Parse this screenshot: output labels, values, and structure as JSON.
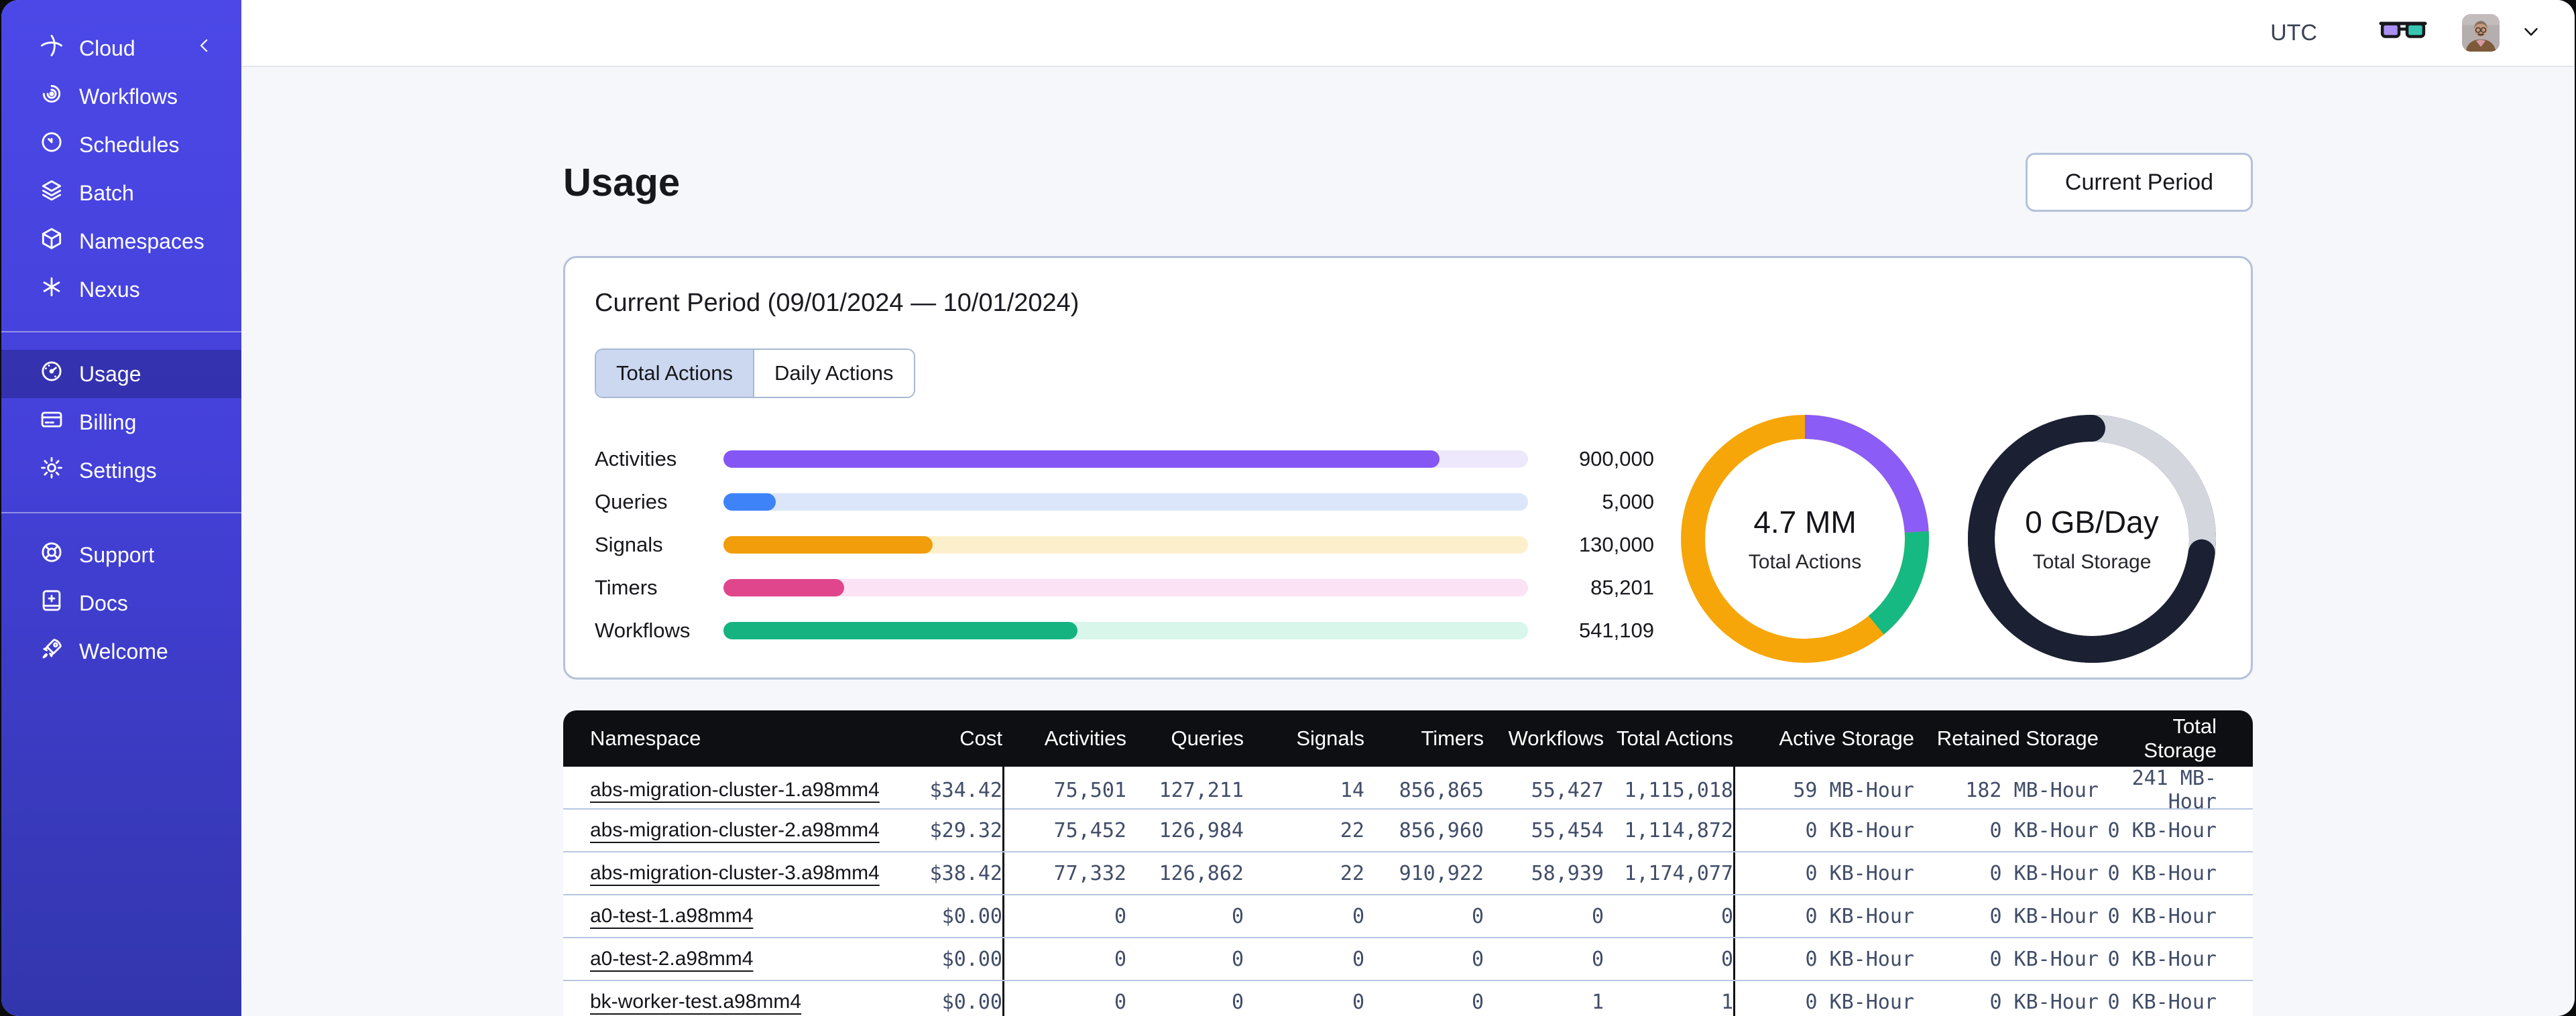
{
  "sidebar": {
    "brand": {
      "label": "Cloud",
      "icon": "cloud-orbit-icon",
      "collapse_icon": "chevron-left-icon"
    },
    "sections": [
      {
        "items": [
          {
            "id": "workflows",
            "label": "Workflows",
            "icon": "workflows-icon",
            "active": false
          },
          {
            "id": "schedules",
            "label": "Schedules",
            "icon": "schedules-icon",
            "active": false
          },
          {
            "id": "batch",
            "label": "Batch",
            "icon": "batch-icon",
            "active": false
          },
          {
            "id": "namespaces",
            "label": "Namespaces",
            "icon": "namespaces-icon",
            "active": false
          },
          {
            "id": "nexus",
            "label": "Nexus",
            "icon": "nexus-icon",
            "active": false
          }
        ]
      },
      {
        "items": [
          {
            "id": "usage",
            "label": "Usage",
            "icon": "usage-icon",
            "active": true
          },
          {
            "id": "billing",
            "label": "Billing",
            "icon": "billing-icon",
            "active": false
          },
          {
            "id": "settings",
            "label": "Settings",
            "icon": "settings-icon",
            "active": false
          }
        ]
      },
      {
        "items": [
          {
            "id": "support",
            "label": "Support",
            "icon": "support-icon",
            "active": false
          },
          {
            "id": "docs",
            "label": "Docs",
            "icon": "docs-icon",
            "active": false
          },
          {
            "id": "welcome",
            "label": "Welcome",
            "icon": "welcome-icon",
            "active": false
          }
        ]
      }
    ]
  },
  "header": {
    "timezone": "UTC"
  },
  "page": {
    "title": "Usage",
    "period_button": {
      "label": "Current Period"
    }
  },
  "card": {
    "title": "Current Period (09/01/2024 — 10/01/2024)",
    "tabs": [
      {
        "label": "Total Actions",
        "active": true
      },
      {
        "label": "Daily Actions",
        "active": false
      }
    ]
  },
  "chart_data": [
    {
      "type": "bar",
      "orientation": "horizontal",
      "title": "Total Actions by type — Current Period (09/01/2024 — 10/01/2024)",
      "categories": [
        "Activities",
        "Queries",
        "Signals",
        "Timers",
        "Workflows"
      ],
      "values": [
        900000,
        5000,
        130000,
        85201,
        541109
      ],
      "value_labels": [
        "900,000",
        "5,000",
        "130,000",
        "85,201",
        "541,109"
      ],
      "fill_pct": [
        89,
        6.5,
        26,
        15,
        44
      ],
      "colors": [
        "#8457f5",
        "#3f83f8",
        "#f19d0c",
        "#e0468c",
        "#14b380"
      ],
      "track_colors": [
        "#ede8fc",
        "#dbe6fa",
        "#fcf0cc",
        "#fbe2f4",
        "#d8f6ea"
      ],
      "grid": false,
      "legend": false
    },
    {
      "type": "pie",
      "variant": "donut",
      "linecap": "butt",
      "stroke": 36,
      "center_value": "4.7 MM",
      "center_label": "Total Actions",
      "segments": [
        {
          "name": "activities",
          "color": "#8b5cf6",
          "fraction": 0.24
        },
        {
          "name": "workflows",
          "color": "#16b981",
          "fraction": 0.15
        },
        {
          "name": "signals",
          "color": "#f6a609",
          "fraction": 0.61
        }
      ]
    },
    {
      "type": "pie",
      "variant": "donut",
      "linecap": "round",
      "stroke": 40,
      "center_value": "0 GB/Day",
      "center_label": "Total Storage",
      "segments": [
        {
          "name": "retained-storage",
          "color": "#d3d6dd",
          "fraction": 0.27
        },
        {
          "name": "active-storage",
          "color": "#1b2032",
          "fraction": 0.73
        }
      ]
    }
  ],
  "table": {
    "columns": [
      "Namespace",
      "Cost",
      "Activities",
      "Queries",
      "Signals",
      "Timers",
      "Workflows",
      "Total Actions",
      "Active Storage",
      "Retained Storage",
      "Total Storage"
    ],
    "rows": [
      [
        "abs-migration-cluster-1.a98mm4",
        "$34.42",
        "75,501",
        "127,211",
        "14",
        "856,865",
        "55,427",
        "1,115,018",
        "59 MB-Hour",
        "182 MB-Hour",
        "241 MB-Hour"
      ],
      [
        "abs-migration-cluster-2.a98mm4",
        "$29.32",
        "75,452",
        "126,984",
        "22",
        "856,960",
        "55,454",
        "1,114,872",
        "0 KB-Hour",
        "0 KB-Hour",
        "0 KB-Hour"
      ],
      [
        "abs-migration-cluster-3.a98mm4",
        "$38.42",
        "77,332",
        "126,862",
        "22",
        "910,922",
        "58,939",
        "1,174,077",
        "0 KB-Hour",
        "0 KB-Hour",
        "0 KB-Hour"
      ],
      [
        "a0-test-1.a98mm4",
        "$0.00",
        "0",
        "0",
        "0",
        "0",
        "0",
        "0",
        "0 KB-Hour",
        "0 KB-Hour",
        "0 KB-Hour"
      ],
      [
        "a0-test-2.a98mm4",
        "$0.00",
        "0",
        "0",
        "0",
        "0",
        "0",
        "0",
        "0 KB-Hour",
        "0 KB-Hour",
        "0 KB-Hour"
      ],
      [
        "bk-worker-test.a98mm4",
        "$0.00",
        "0",
        "0",
        "0",
        "0",
        "1",
        "1",
        "0 KB-Hour",
        "0 KB-Hour",
        "0 KB-Hour"
      ]
    ]
  }
}
